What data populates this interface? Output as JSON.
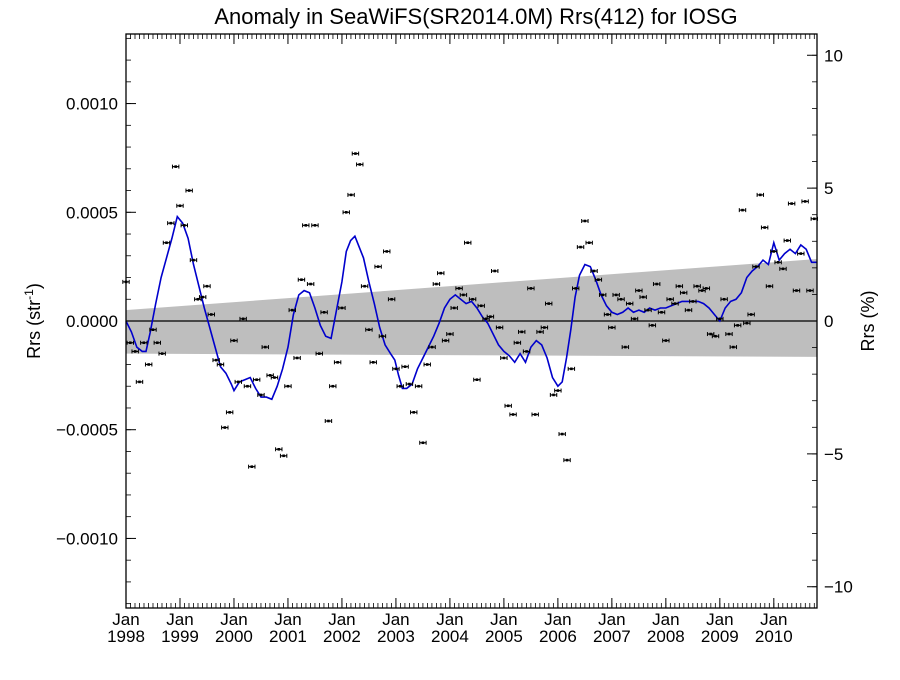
{
  "chart_data": {
    "type": "scatter",
    "title": "Anomaly in SeaWiFS(SR2014.0M) Rrs(412) for IOSG",
    "ylabel_left_main": "Rrs (str",
    "ylabel_left_sup": "-1",
    "ylabel_left_close": ")",
    "ylabel_right": "Rrs (%)",
    "xlim": [
      1998.0,
      2010.8
    ],
    "ylim_left": [
      -0.00132,
      0.00132
    ],
    "ylim_right": [
      -10.8,
      10.8
    ],
    "xticks": [
      {
        "month": "Jan",
        "year": "1998",
        "x": 1998
      },
      {
        "month": "Jan",
        "year": "1999",
        "x": 1999
      },
      {
        "month": "Jan",
        "year": "2000",
        "x": 2000
      },
      {
        "month": "Jan",
        "year": "2001",
        "x": 2001
      },
      {
        "month": "Jan",
        "year": "2002",
        "x": 2002
      },
      {
        "month": "Jan",
        "year": "2003",
        "x": 2003
      },
      {
        "month": "Jan",
        "year": "2004",
        "x": 2004
      },
      {
        "month": "Jan",
        "year": "2005",
        "x": 2005
      },
      {
        "month": "Jan",
        "year": "2006",
        "x": 2006
      },
      {
        "month": "Jan",
        "year": "2007",
        "x": 2007
      },
      {
        "month": "Jan",
        "year": "2008",
        "x": 2008
      },
      {
        "month": "Jan",
        "year": "2009",
        "x": 2009
      },
      {
        "month": "Jan",
        "year": "2010",
        "x": 2010
      }
    ],
    "yticks_left": [
      {
        "label": "0.0010",
        "value": 0.001
      },
      {
        "label": "0.0005",
        "value": 0.0005
      },
      {
        "label": "0.0000",
        "value": 0.0
      },
      {
        "label": "−0.0005",
        "value": -0.0005
      },
      {
        "label": "−0.0010",
        "value": -0.001
      }
    ],
    "yticks_right": [
      {
        "label": "10",
        "value": 10
      },
      {
        "label": "5",
        "value": 5
      },
      {
        "label": "0",
        "value": 0
      },
      {
        "label": "−5",
        "value": -5
      },
      {
        "label": "−10",
        "value": -10
      }
    ],
    "band": {
      "color": "#bebebe",
      "upper": [
        [
          1998.0,
          5e-05
        ],
        [
          2010.8,
          0.000285
        ]
      ],
      "lower": [
        [
          1998.0,
          -0.00015
        ],
        [
          2010.8,
          -0.000165
        ]
      ]
    },
    "zero_line": 0.0,
    "points_color": "#000000",
    "line_color": "#0000cc",
    "points": [
      [
        1998.0,
        0.00018
      ],
      [
        1998.08,
        -0.0001
      ],
      [
        1998.17,
        -0.00014
      ],
      [
        1998.25,
        -0.00028
      ],
      [
        1998.33,
        -0.0001
      ],
      [
        1998.42,
        -0.0002
      ],
      [
        1998.5,
        -4e-05
      ],
      [
        1998.58,
        -0.0001
      ],
      [
        1998.67,
        -0.00015
      ],
      [
        1998.75,
        0.00036
      ],
      [
        1998.83,
        0.00045
      ],
      [
        1998.92,
        0.00071
      ],
      [
        1999.0,
        0.00053
      ],
      [
        1999.08,
        0.00044
      ],
      [
        1999.17,
        0.0006
      ],
      [
        1999.25,
        0.00028
      ],
      [
        1999.33,
        0.0001
      ],
      [
        1999.42,
        0.00011
      ],
      [
        1999.5,
        0.00016
      ],
      [
        1999.58,
        3e-05
      ],
      [
        1999.67,
        -0.00018
      ],
      [
        1999.75,
        -0.0002
      ],
      [
        1999.83,
        -0.00049
      ],
      [
        1999.92,
        -0.00042
      ],
      [
        2000.0,
        -9e-05
      ],
      [
        2000.08,
        -0.00028
      ],
      [
        2000.17,
        1e-05
      ],
      [
        2000.25,
        -0.0003
      ],
      [
        2000.33,
        -0.00067
      ],
      [
        2000.42,
        -0.00027
      ],
      [
        2000.5,
        -0.00034
      ],
      [
        2000.58,
        -0.00012
      ],
      [
        2000.67,
        -0.00025
      ],
      [
        2000.75,
        -0.00026
      ],
      [
        2000.83,
        -0.00059
      ],
      [
        2000.92,
        -0.00062
      ],
      [
        2001.0,
        -0.0003
      ],
      [
        2001.08,
        5e-05
      ],
      [
        2001.17,
        -0.00017
      ],
      [
        2001.25,
        0.00019
      ],
      [
        2001.33,
        0.00044
      ],
      [
        2001.42,
        0.00017
      ],
      [
        2001.5,
        0.00044
      ],
      [
        2001.58,
        -0.00015
      ],
      [
        2001.67,
        4e-05
      ],
      [
        2001.75,
        -0.00046
      ],
      [
        2001.83,
        -0.0003
      ],
      [
        2001.92,
        -0.00019
      ],
      [
        2002.0,
        6e-05
      ],
      [
        2002.08,
        0.0005
      ],
      [
        2002.17,
        0.00058
      ],
      [
        2002.25,
        0.00077
      ],
      [
        2002.33,
        0.00072
      ],
      [
        2002.42,
        0.00016
      ],
      [
        2002.5,
        -4e-05
      ],
      [
        2002.58,
        -0.00019
      ],
      [
        2002.67,
        0.00025
      ],
      [
        2002.75,
        -7e-05
      ],
      [
        2002.83,
        0.00032
      ],
      [
        2002.92,
        0.0001
      ],
      [
        2003.0,
        -0.00022
      ],
      [
        2003.08,
        -0.0003
      ],
      [
        2003.17,
        -0.00021
      ],
      [
        2003.25,
        -0.00029
      ],
      [
        2003.33,
        -0.00042
      ],
      [
        2003.42,
        -0.0003
      ],
      [
        2003.5,
        -0.00056
      ],
      [
        2003.58,
        -0.0002
      ],
      [
        2003.67,
        -0.00012
      ],
      [
        2003.75,
        0.00017
      ],
      [
        2003.83,
        0.00022
      ],
      [
        2003.92,
        -9e-05
      ],
      [
        2004.0,
        -6e-05
      ],
      [
        2004.08,
        6e-05
      ],
      [
        2004.17,
        0.00015
      ],
      [
        2004.25,
        0.00012
      ],
      [
        2004.33,
        0.00036
      ],
      [
        2004.42,
        0.0001
      ],
      [
        2004.5,
        -0.00027
      ],
      [
        2004.58,
        7e-05
      ],
      [
        2004.67,
        1e-05
      ],
      [
        2004.75,
        2e-05
      ],
      [
        2004.83,
        0.00023
      ],
      [
        2004.92,
        -3e-05
      ],
      [
        2005.0,
        -0.00017
      ],
      [
        2005.08,
        -0.00039
      ],
      [
        2005.17,
        -0.00043
      ],
      [
        2005.25,
        -0.0001
      ],
      [
        2005.33,
        -5e-05
      ],
      [
        2005.42,
        -0.00014
      ],
      [
        2005.5,
        0.00015
      ],
      [
        2005.58,
        -0.00043
      ],
      [
        2005.67,
        -5e-05
      ],
      [
        2005.75,
        -3e-05
      ],
      [
        2005.83,
        8e-05
      ],
      [
        2005.92,
        -0.00034
      ],
      [
        2006.0,
        -0.00032
      ],
      [
        2006.08,
        -0.00052
      ],
      [
        2006.17,
        -0.00064
      ],
      [
        2006.25,
        -0.00022
      ],
      [
        2006.33,
        0.00015
      ],
      [
        2006.42,
        0.00034
      ],
      [
        2006.5,
        0.00046
      ],
      [
        2006.58,
        0.00036
      ],
      [
        2006.67,
        0.00023
      ],
      [
        2006.75,
        0.00019
      ],
      [
        2006.83,
        0.00012
      ],
      [
        2006.92,
        3e-05
      ],
      [
        2007.0,
        -3e-05
      ],
      [
        2007.08,
        0.00012
      ],
      [
        2007.17,
        0.0001
      ],
      [
        2007.25,
        -0.00012
      ],
      [
        2007.33,
        8e-05
      ],
      [
        2007.42,
        1e-05
      ],
      [
        2007.5,
        0.00014
      ],
      [
        2007.58,
        0.00011
      ],
      [
        2007.67,
        5e-05
      ],
      [
        2007.75,
        -2e-05
      ],
      [
        2007.83,
        0.00017
      ],
      [
        2007.92,
        4e-05
      ],
      [
        2008.0,
        -9e-05
      ],
      [
        2008.08,
        0.0001
      ],
      [
        2008.17,
        8e-05
      ],
      [
        2008.25,
        0.00016
      ],
      [
        2008.33,
        0.00013
      ],
      [
        2008.42,
        5e-05
      ],
      [
        2008.5,
        9e-05
      ],
      [
        2008.58,
        0.00016
      ],
      [
        2008.67,
        0.00014
      ],
      [
        2008.75,
        0.00015
      ],
      [
        2008.83,
        -6e-05
      ],
      [
        2008.92,
        -7e-05
      ],
      [
        2009.0,
        1e-05
      ],
      [
        2009.08,
        0.0001
      ],
      [
        2009.17,
        -6e-05
      ],
      [
        2009.25,
        -0.00012
      ],
      [
        2009.33,
        -2e-05
      ],
      [
        2009.42,
        0.00051
      ],
      [
        2009.5,
        -1e-05
      ],
      [
        2009.58,
        3e-05
      ],
      [
        2009.67,
        0.00025
      ],
      [
        2009.75,
        0.00058
      ],
      [
        2009.83,
        0.00043
      ],
      [
        2009.92,
        0.00016
      ],
      [
        2010.0,
        0.00032
      ],
      [
        2010.08,
        0.00027
      ],
      [
        2010.17,
        0.00024
      ],
      [
        2010.25,
        0.00037
      ],
      [
        2010.33,
        0.00054
      ],
      [
        2010.42,
        0.00014
      ],
      [
        2010.5,
        0.00031
      ],
      [
        2010.58,
        0.00055
      ],
      [
        2010.67,
        0.00014
      ],
      [
        2010.75,
        0.00047
      ]
    ],
    "line": [
      [
        1998.0,
        0.0
      ],
      [
        1998.1,
        -5e-05
      ],
      [
        1998.2,
        -0.00012
      ],
      [
        1998.3,
        -0.00014
      ],
      [
        1998.37,
        -0.00014
      ],
      [
        1998.45,
        -5e-05
      ],
      [
        1998.55,
        8e-05
      ],
      [
        1998.65,
        0.0002
      ],
      [
        1998.75,
        0.00029
      ],
      [
        1998.85,
        0.00038
      ],
      [
        1998.95,
        0.00048
      ],
      [
        1999.05,
        0.00045
      ],
      [
        1999.15,
        0.00038
      ],
      [
        1999.25,
        0.00026
      ],
      [
        1999.35,
        0.00016
      ],
      [
        1999.45,
        6e-05
      ],
      [
        1999.55,
        -3e-05
      ],
      [
        1999.65,
        -0.00012
      ],
      [
        1999.75,
        -0.00021
      ],
      [
        1999.85,
        -0.00024
      ],
      [
        1999.95,
        -0.00029
      ],
      [
        2000.0,
        -0.00032
      ],
      [
        2000.1,
        -0.00028
      ],
      [
        2000.2,
        -0.00027
      ],
      [
        2000.3,
        -0.00026
      ],
      [
        2000.4,
        -0.00031
      ],
      [
        2000.5,
        -0.00035
      ],
      [
        2000.6,
        -0.00035
      ],
      [
        2000.7,
        -0.00036
      ],
      [
        2000.8,
        -0.0003
      ],
      [
        2000.9,
        -0.00022
      ],
      [
        2001.0,
        -0.00012
      ],
      [
        2001.1,
        3e-05
      ],
      [
        2001.2,
        0.00012
      ],
      [
        2001.3,
        0.00014
      ],
      [
        2001.4,
        0.00013
      ],
      [
        2001.5,
        6e-05
      ],
      [
        2001.6,
        -2e-05
      ],
      [
        2001.7,
        -7e-05
      ],
      [
        2001.8,
        -8e-05
      ],
      [
        2001.9,
        5e-05
      ],
      [
        2002.0,
        0.00018
      ],
      [
        2002.08,
        0.00032
      ],
      [
        2002.16,
        0.00037
      ],
      [
        2002.24,
        0.00039
      ],
      [
        2002.32,
        0.00034
      ],
      [
        2002.4,
        0.00029
      ],
      [
        2002.5,
        0.00018
      ],
      [
        2002.6,
        8e-05
      ],
      [
        2002.7,
        -3e-05
      ],
      [
        2002.8,
        -0.00011
      ],
      [
        2002.9,
        -0.00015
      ],
      [
        2002.98,
        -0.00018
      ],
      [
        2003.05,
        -0.00025
      ],
      [
        2003.12,
        -0.00031
      ],
      [
        2003.2,
        -0.00031
      ],
      [
        2003.3,
        -0.00029
      ],
      [
        2003.4,
        -0.00022
      ],
      [
        2003.5,
        -0.00017
      ],
      [
        2003.6,
        -0.00012
      ],
      [
        2003.7,
        -7e-05
      ],
      [
        2003.8,
        -1e-05
      ],
      [
        2003.9,
        6e-05
      ],
      [
        2004.0,
        0.0001
      ],
      [
        2004.1,
        0.00012
      ],
      [
        2004.2,
        0.0001
      ],
      [
        2004.3,
        8e-05
      ],
      [
        2004.4,
        9e-05
      ],
      [
        2004.5,
        6e-05
      ],
      [
        2004.6,
        2e-05
      ],
      [
        2004.7,
        -1e-05
      ],
      [
        2004.8,
        -6e-05
      ],
      [
        2004.9,
        -0.00011
      ],
      [
        2005.0,
        -0.00014
      ],
      [
        2005.1,
        -0.00016
      ],
      [
        2005.2,
        -0.00019
      ],
      [
        2005.3,
        -0.00015
      ],
      [
        2005.4,
        -0.00019
      ],
      [
        2005.5,
        -0.00012
      ],
      [
        2005.6,
        -9e-05
      ],
      [
        2005.7,
        -0.00011
      ],
      [
        2005.8,
        -0.00017
      ],
      [
        2005.9,
        -0.00026
      ],
      [
        2006.0,
        -0.0003
      ],
      [
        2006.08,
        -0.00028
      ],
      [
        2006.16,
        -0.00017
      ],
      [
        2006.24,
        -4e-05
      ],
      [
        2006.32,
        0.00011
      ],
      [
        2006.4,
        0.00021
      ],
      [
        2006.5,
        0.00026
      ],
      [
        2006.6,
        0.00025
      ],
      [
        2006.7,
        0.00019
      ],
      [
        2006.8,
        0.00012
      ],
      [
        2006.9,
        7e-05
      ],
      [
        2007.0,
        4e-05
      ],
      [
        2007.1,
        3e-05
      ],
      [
        2007.2,
        4e-05
      ],
      [
        2007.3,
        6e-05
      ],
      [
        2007.4,
        4e-05
      ],
      [
        2007.5,
        5e-05
      ],
      [
        2007.6,
        4e-05
      ],
      [
        2007.7,
        6e-05
      ],
      [
        2007.8,
        5e-05
      ],
      [
        2007.9,
        6e-05
      ],
      [
        2008.0,
        6e-05
      ],
      [
        2008.1,
        7e-05
      ],
      [
        2008.2,
        8e-05
      ],
      [
        2008.3,
        9e-05
      ],
      [
        2008.4,
        9e-05
      ],
      [
        2008.5,
        9e-05
      ],
      [
        2008.6,
        9e-05
      ],
      [
        2008.7,
        8e-05
      ],
      [
        2008.8,
        6e-05
      ],
      [
        2008.9,
        3e-05
      ],
      [
        2009.0,
        0.0
      ],
      [
        2009.1,
        6e-05
      ],
      [
        2009.2,
        9e-05
      ],
      [
        2009.3,
        0.0001
      ],
      [
        2009.4,
        0.00013
      ],
      [
        2009.5,
        0.0002
      ],
      [
        2009.6,
        0.00023
      ],
      [
        2009.7,
        0.00025
      ],
      [
        2009.8,
        0.00028
      ],
      [
        2009.9,
        0.00026
      ],
      [
        2010.0,
        0.00036
      ],
      [
        2010.1,
        0.00028
      ],
      [
        2010.2,
        0.00031
      ],
      [
        2010.3,
        0.00033
      ],
      [
        2010.4,
        0.00031
      ],
      [
        2010.5,
        0.00035
      ],
      [
        2010.6,
        0.00033
      ],
      [
        2010.7,
        0.00027
      ],
      [
        2010.8,
        0.00027
      ]
    ]
  }
}
